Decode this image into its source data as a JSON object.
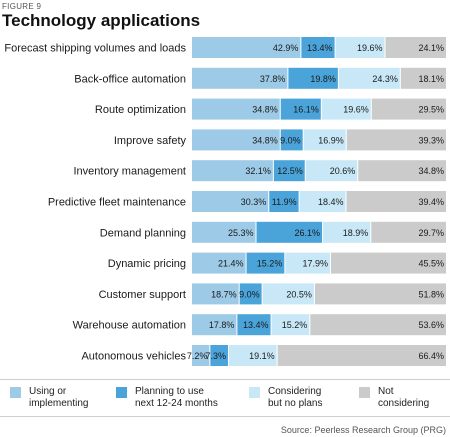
{
  "figure_label": "FIGURE 9",
  "title": "Technology applications",
  "source": "Source: Peerless Research Group (PRG)",
  "chart_data": {
    "type": "bar",
    "stacked": true,
    "orientation": "horizontal",
    "value_format": "percent",
    "categories": [
      "Forecast shipping volumes and loads",
      "Back-office automation",
      "Route optimization",
      "Improve safety",
      "Inventory management",
      "Predictive fleet maintenance",
      "Demand planning",
      "Dynamic pricing",
      "Customer support",
      "Warehouse automation",
      "Autonomous vehicles"
    ],
    "series": [
      {
        "name": "Using or\nimplementing",
        "color": "#9dcae6",
        "values": [
          42.9,
          37.8,
          34.8,
          34.8,
          32.1,
          30.3,
          25.3,
          21.4,
          18.7,
          17.8,
          7.2
        ]
      },
      {
        "name": "Planning to use\nnext 12-24 months",
        "color": "#4aa3d9",
        "values": [
          13.4,
          19.8,
          16.1,
          9.0,
          12.5,
          11.9,
          26.1,
          15.2,
          9.0,
          13.4,
          7.3
        ]
      },
      {
        "name": "Considering\nbut no plans",
        "color": "#c9e8f7",
        "values": [
          19.6,
          24.3,
          19.6,
          16.9,
          20.6,
          18.4,
          18.9,
          17.9,
          20.5,
          15.2,
          19.1
        ]
      },
      {
        "name": "Not\nconsidering",
        "color": "#cbcbcb",
        "values": [
          24.1,
          18.1,
          29.5,
          39.3,
          34.8,
          39.4,
          29.7,
          45.5,
          51.8,
          53.6,
          66.4
        ]
      }
    ],
    "xlim": [
      0,
      100
    ],
    "grid": false,
    "legend_position": "bottom"
  }
}
